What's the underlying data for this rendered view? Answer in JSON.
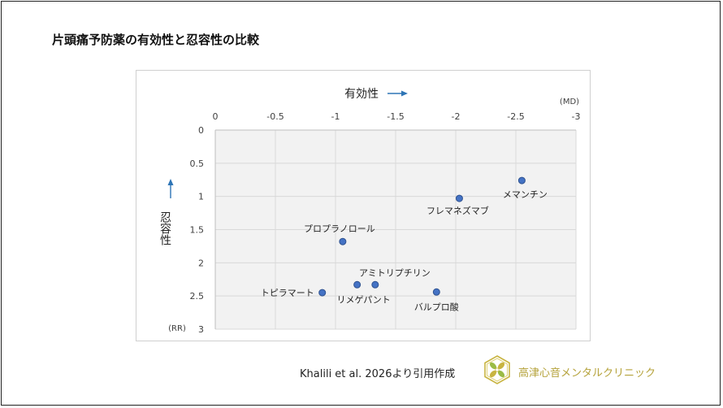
{
  "slide": {
    "title": "片頭痛予防薬の有効性と忍容性の比較",
    "source": "Khalili et al. 2026より引用作成",
    "clinic_name": "高津心音メンタルクリニック"
  },
  "chart_data": {
    "type": "scatter",
    "xlabel": "有効性",
    "ylabel": "忍容性",
    "x_unit": "(MD)",
    "y_unit": "(RR)",
    "xlim": [
      0,
      -3
    ],
    "ylim": [
      0,
      3
    ],
    "x_ticks": [
      0,
      -0.5,
      -1,
      -1.5,
      -2,
      -2.5,
      -3
    ],
    "x_tick_labels": [
      "0",
      "-0.5",
      "-1",
      "-1.5",
      "-2",
      "-2.5",
      "-3"
    ],
    "y_ticks": [
      0,
      0.5,
      1,
      1.5,
      2,
      2.5,
      3
    ],
    "y_tick_labels": [
      "0",
      "0.5",
      "1",
      "1.5",
      "2",
      "2.5",
      "3"
    ],
    "x_axis_position": "top",
    "y_axis_inverted": true,
    "grid": true,
    "points": [
      {
        "label": "メマンチン",
        "x": -2.55,
        "y": 0.76
      },
      {
        "label": "フレマネズマブ",
        "x": -2.03,
        "y": 1.03
      },
      {
        "label": "プロプラノロール",
        "x": -1.06,
        "y": 1.68
      },
      {
        "label": "アミトリプチリン",
        "x": -1.33,
        "y": 2.33
      },
      {
        "label": "リメゲパント",
        "x": -1.18,
        "y": 2.33
      },
      {
        "label": "トピラマート",
        "x": -0.89,
        "y": 2.45
      },
      {
        "label": "バルプロ酸",
        "x": -1.84,
        "y": 2.44
      }
    ],
    "colors": {
      "point_fill": "#4472c4",
      "point_stroke": "#2f528f",
      "plot_background": "#f2f2f2",
      "grid": "#d9d9d9",
      "arrow": "#2e75b6",
      "text": "#404040"
    }
  }
}
